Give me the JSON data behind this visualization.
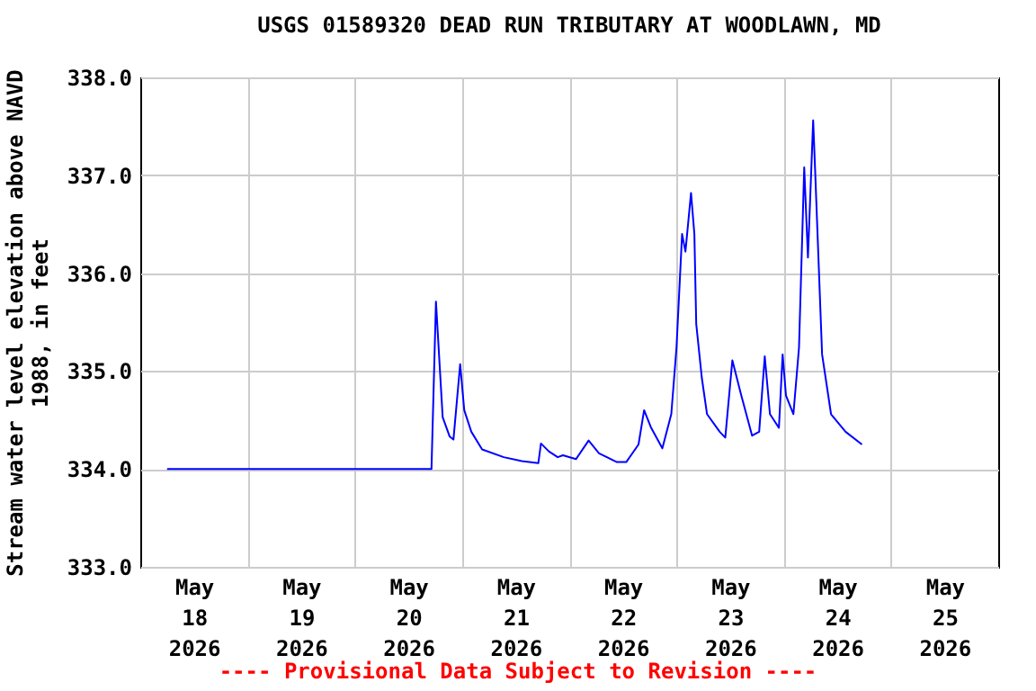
{
  "chart_data": {
    "type": "line",
    "title": "USGS 01589320 DEAD RUN TRIBUTARY AT WOODLAWN, MD",
    "ylabel": "Stream water level elevation above NAVD 1988, in feet",
    "annotations": [
      "---- Provisional Data Subject to Revision ----"
    ],
    "x": [
      "2026-05-18T06:00",
      "2026-05-20T17:10",
      "2026-05-20T18:10",
      "2026-05-20T19:40",
      "2026-05-20T21:15",
      "2026-05-20T22:05",
      "2026-05-20T23:35",
      "2026-05-21T00:30",
      "2026-05-21T02:05",
      "2026-05-21T04:30",
      "2026-05-21T09:20",
      "2026-05-21T13:25",
      "2026-05-21T17:05",
      "2026-05-21T17:40",
      "2026-05-21T19:25",
      "2026-05-21T21:25",
      "2026-05-21T22:35",
      "2026-05-22T01:30",
      "2026-05-22T04:20",
      "2026-05-22T06:40",
      "2026-05-22T10:40",
      "2026-05-22T12:45",
      "2026-05-22T15:30",
      "2026-05-22T16:45",
      "2026-05-22T18:20",
      "2026-05-22T20:50",
      "2026-05-22T22:50",
      "2026-05-23T00:00",
      "2026-05-23T01:15",
      "2026-05-23T02:00",
      "2026-05-23T03:15",
      "2026-05-23T04:00",
      "2026-05-23T04:25",
      "2026-05-23T05:40",
      "2026-05-23T06:50",
      "2026-05-23T09:40",
      "2026-05-23T10:55",
      "2026-05-23T12:30",
      "2026-05-23T14:30",
      "2026-05-23T16:55",
      "2026-05-23T18:30",
      "2026-05-23T19:45",
      "2026-05-23T20:55",
      "2026-05-23T22:55",
      "2026-05-23T23:45",
      "2026-05-24T00:30",
      "2026-05-24T02:10",
      "2026-05-24T03:25",
      "2026-05-24T04:35",
      "2026-05-24T05:25",
      "2026-05-24T06:35",
      "2026-05-24T07:00",
      "2026-05-24T08:35",
      "2026-05-24T10:35",
      "2026-05-24T13:50",
      "2026-05-24T17:30"
    ],
    "series": [
      {
        "color": "#0000ff",
        "values": [
          334.0,
          334.0,
          335.71,
          334.53,
          334.33,
          334.3,
          335.07,
          334.6,
          334.38,
          334.2,
          334.12,
          334.08,
          334.06,
          334.26,
          334.18,
          334.12,
          334.14,
          334.1,
          334.29,
          334.16,
          334.07,
          334.07,
          334.25,
          334.6,
          334.42,
          334.21,
          334.56,
          335.24,
          336.4,
          336.22,
          336.82,
          336.4,
          335.48,
          334.93,
          334.56,
          334.38,
          334.32,
          335.11,
          334.75,
          334.34,
          334.38,
          335.15,
          334.56,
          334.42,
          335.17,
          334.75,
          334.56,
          335.24,
          337.08,
          336.16,
          337.56,
          337.08,
          335.17,
          334.56,
          334.38,
          334.25
        ]
      }
    ],
    "xlim": [
      "2026-05-18T00:00",
      "2026-05-26T00:00"
    ],
    "xticks": [
      {
        "value": "2026-05-18T12:00",
        "label": "May 18 2026"
      },
      {
        "value": "2026-05-19T00:00",
        "label": null
      },
      {
        "value": "2026-05-19T12:00",
        "label": "May 19 2026"
      },
      {
        "value": "2026-05-20T00:00",
        "label": null
      },
      {
        "value": "2026-05-20T12:00",
        "label": "May 20 2026"
      },
      {
        "value": "2026-05-21T00:00",
        "label": null
      },
      {
        "value": "2026-05-21T12:00",
        "label": "May 21 2026"
      },
      {
        "value": "2026-05-22T00:00",
        "label": null
      },
      {
        "value": "2026-05-22T12:00",
        "label": "May 22 2026"
      },
      {
        "value": "2026-05-23T00:00",
        "label": null
      },
      {
        "value": "2026-05-23T12:00",
        "label": "May 23 2026"
      },
      {
        "value": "2026-05-24T00:00",
        "label": null
      },
      {
        "value": "2026-05-24T12:00",
        "label": "May 24 2026"
      },
      {
        "value": "2026-05-25T00:00",
        "label": null
      },
      {
        "value": "2026-05-25T12:00",
        "label": "May 25 2026"
      }
    ],
    "ylim": [
      333,
      338
    ],
    "yticks": [
      {
        "value": 333,
        "label": "333.0"
      },
      {
        "value": 334,
        "label": "334.0"
      },
      {
        "value": 335,
        "label": "335.0"
      },
      {
        "value": 336,
        "label": "336.0"
      },
      {
        "value": 337,
        "label": "337.0"
      },
      {
        "value": 338,
        "label": "338.0"
      }
    ],
    "grid": true,
    "marker": "none",
    "line_style": "solid"
  }
}
